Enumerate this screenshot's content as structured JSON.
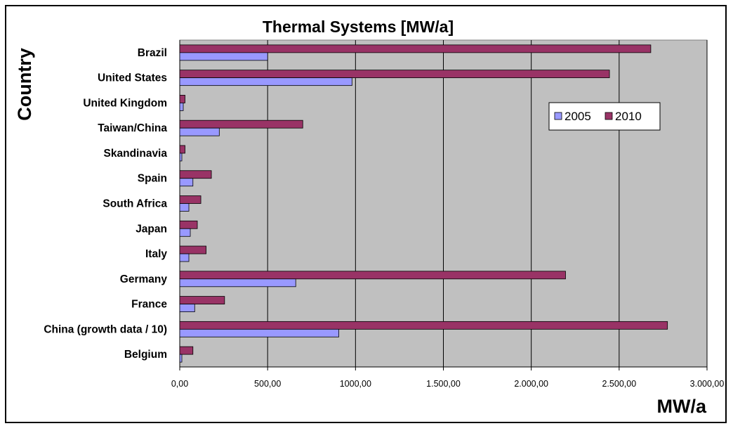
{
  "chart_data": {
    "type": "bar",
    "orientation": "horizontal",
    "title": "Thermal Systems [MW/a]",
    "xlabel": "MW/a",
    "ylabel": "Country",
    "xlim": [
      0,
      3000
    ],
    "xticks": [
      "0,00",
      "500,00",
      "1000,00",
      "1.500,00",
      "2.000,00",
      "2.500,00",
      "3.000,00"
    ],
    "xtick_values": [
      0,
      500,
      1000,
      1500,
      2000,
      2500,
      3000
    ],
    "grid": true,
    "legend_position": "right",
    "categories": [
      "Belgium",
      "China (growth data / 10)",
      "France",
      "Germany",
      "Italy",
      "Japan",
      "South Africa",
      "Spain",
      "Skandinavia",
      "Taiwan/China",
      "United Kingdom",
      "United States",
      "Brazil"
    ],
    "series": [
      {
        "name": "2005",
        "color": "#9999ff",
        "values": [
          12,
          905,
          85,
          660,
          52,
          60,
          52,
          75,
          12,
          225,
          20,
          980,
          500
        ]
      },
      {
        "name": "2010",
        "color": "#993366",
        "values": [
          75,
          2775,
          255,
          2195,
          150,
          100,
          120,
          180,
          30,
          700,
          30,
          2445,
          2680
        ]
      }
    ],
    "colors": {
      "plot_area": "#c0c0c0",
      "gridline": "#000000"
    }
  }
}
